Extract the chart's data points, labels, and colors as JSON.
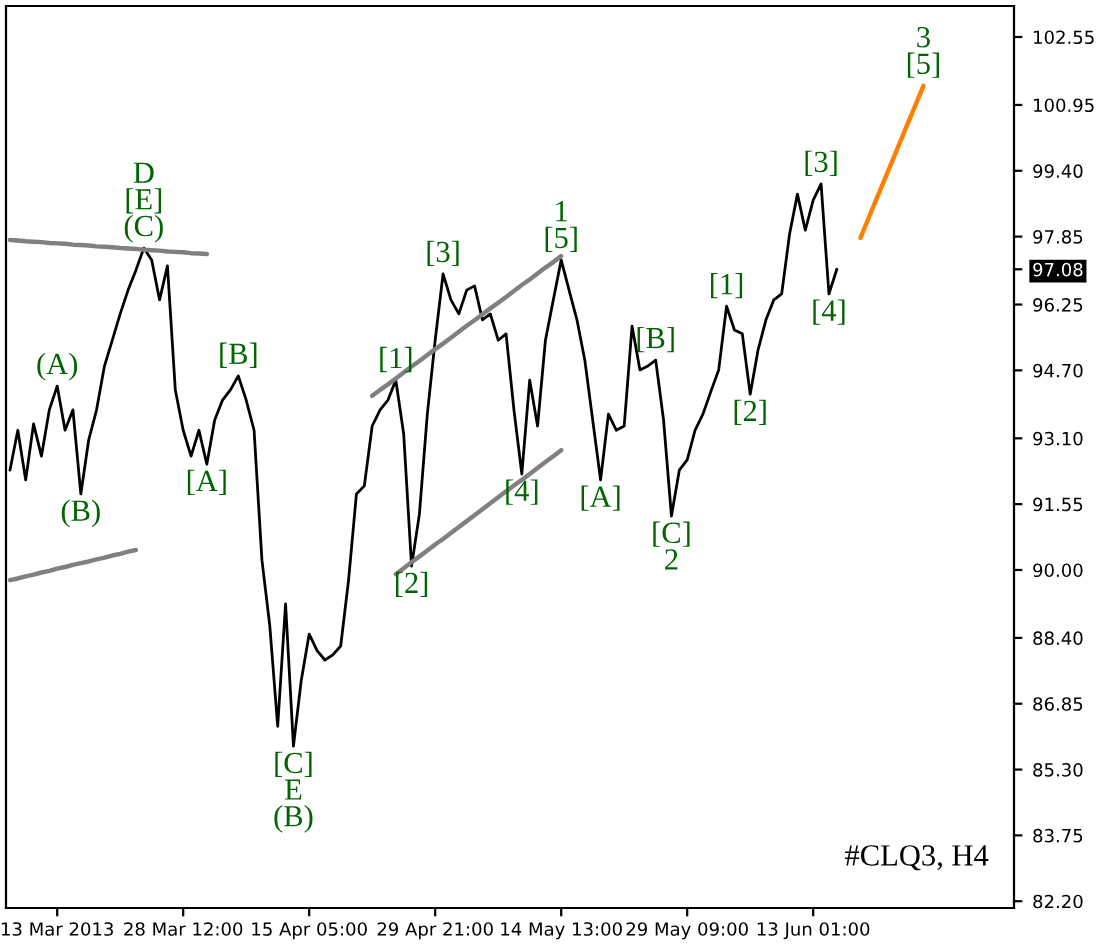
{
  "chart_data": {
    "type": "line",
    "categories": [
      null,
      null,
      null,
      null,
      null,
      null,
      "13 Mar 2013",
      null,
      null,
      null,
      null,
      null,
      null,
      null,
      null,
      null,
      null,
      null,
      null,
      null,
      null,
      null,
      "28 Mar 12:00",
      null,
      null,
      null,
      null,
      null,
      null,
      null,
      null,
      null,
      null,
      null,
      null,
      null,
      null,
      null,
      "15 Apr 05:00",
      null,
      null,
      null,
      null,
      null,
      null,
      null,
      null,
      null,
      null,
      null,
      null,
      null,
      null,
      null,
      "29 Apr 21:00",
      null,
      null,
      null,
      null,
      null,
      null,
      null,
      null,
      null,
      null,
      null,
      null,
      null,
      null,
      null,
      "14 May 13:00",
      null,
      null,
      null,
      null,
      null,
      null,
      null,
      null,
      null,
      null,
      null,
      null,
      null,
      null,
      null,
      "29 May 09:00",
      null,
      null,
      null,
      null,
      null,
      null,
      null,
      null,
      null,
      null,
      null,
      null,
      null,
      null,
      null,
      "13 Jun 01:00",
      null,
      null,
      null,
      null,
      null,
      null,
      null,
      null,
      null,
      null,
      null,
      null,
      null,
      null,
      null,
      null,
      null,
      null,
      null,
      null,
      null,
      null,
      null,
      null,
      null
    ],
    "ylim": [
      82.04,
      103.28
    ],
    "yticks": [
      {
        "value": 82.2,
        "label": "82.20"
      },
      {
        "value": 83.75,
        "label": "83.75"
      },
      {
        "value": 85.3,
        "label": "85.30"
      },
      {
        "value": 86.85,
        "label": "86.85"
      },
      {
        "value": 88.4,
        "label": "88.40"
      },
      {
        "value": 90,
        "label": "90.00"
      },
      {
        "value": 91.55,
        "label": "91.55"
      },
      {
        "value": 93.1,
        "label": "93.10"
      },
      {
        "value": 94.7,
        "label": "94.70"
      },
      {
        "value": 96.25,
        "label": "96.25"
      },
      97.08,
      {
        "value": 97.85,
        "label": "97.85"
      },
      {
        "value": 99.4,
        "label": "99.40"
      },
      {
        "value": 100.95,
        "label": "100.95"
      },
      {
        "value": 102.55,
        "label": "102.55"
      }
    ],
    "series": [
      {
        "color": "#000000",
        "values": [
          92.35,
          93.29,
          92.12,
          93.44,
          92.68,
          93.77,
          94.33,
          93.29,
          93.77,
          91.79,
          93.06,
          93.77,
          94.8,
          95.41,
          96.03,
          96.59,
          97.06,
          97.58,
          97.3,
          96.36,
          97.16,
          94.24,
          93.29,
          92.68,
          93.29,
          92.49,
          93.53,
          94.0,
          94.24,
          94.57,
          94.0,
          93.29,
          90.23,
          88.68,
          86.32,
          89.2,
          85.85,
          87.41,
          88.49,
          88.1,
          87.88,
          88.0,
          88.21,
          89.76,
          91.79,
          91.98,
          93.39,
          93.77,
          94.0,
          94.47,
          93.2,
          90.09,
          91.32,
          93.67,
          95.41,
          96.97,
          96.36,
          96.03,
          96.59,
          96.69,
          95.89,
          96.03,
          95.41,
          95.56,
          93.77,
          92.26,
          94.47,
          93.39,
          95.41,
          96.36,
          97.3,
          96.59,
          95.89,
          94.94,
          93.53,
          92.12,
          93.67,
          93.29,
          93.39,
          95.74,
          94.71,
          94.8,
          94.94,
          93.53,
          91.27,
          92.35,
          92.59,
          93.29,
          93.67,
          94.2,
          94.71,
          96.21,
          95.65,
          95.56,
          94.14,
          95.18,
          95.89,
          96.36,
          96.5,
          97.91,
          98.85,
          98.0,
          98.71,
          99.09,
          96.5,
          97.08,
          null,
          null,
          null,
          null,
          null,
          null,
          null,
          null,
          null,
          null,
          null,
          null,
          null,
          null,
          null,
          null,
          null,
          null,
          null,
          null,
          null,
          null
        ]
      },
      {
        "color": "#ff8000",
        "values": [
          null,
          null,
          null,
          null,
          null,
          null,
          null,
          null,
          null,
          null,
          null,
          null,
          null,
          null,
          null,
          null,
          null,
          null,
          null,
          null,
          null,
          null,
          null,
          null,
          null,
          null,
          null,
          null,
          null,
          null,
          null,
          null,
          null,
          null,
          null,
          null,
          null,
          null,
          null,
          null,
          null,
          null,
          null,
          null,
          null,
          null,
          null,
          null,
          null,
          null,
          null,
          null,
          null,
          null,
          null,
          null,
          null,
          null,
          null,
          null,
          null,
          null,
          null,
          null,
          null,
          null,
          null,
          null,
          null,
          null,
          null,
          null,
          null,
          null,
          null,
          null,
          null,
          null,
          null,
          null,
          null,
          null,
          null,
          null,
          null,
          null,
          null,
          null,
          null,
          null,
          null,
          null,
          null,
          null,
          null,
          null,
          null,
          null,
          null,
          null,
          null,
          null,
          null,
          null,
          null,
          null,
          null,
          null,
          97.82,
          98.27,
          98.72,
          99.16,
          99.61,
          100.06,
          100.51,
          100.95,
          101.4,
          null,
          null,
          null,
          null,
          null,
          null,
          null,
          null,
          null,
          null,
          null
        ]
      },
      {
        "color": "#808080",
        "values": [
          97.77,
          97.76,
          97.74,
          97.73,
          97.72,
          97.7,
          97.69,
          97.68,
          97.66,
          97.65,
          97.64,
          97.62,
          97.61,
          97.6,
          97.58,
          97.57,
          97.56,
          97.54,
          97.53,
          97.52,
          97.5,
          97.49,
          97.48,
          97.46,
          97.45,
          97.44,
          null,
          null,
          null,
          null,
          null,
          null,
          null,
          null,
          null,
          null,
          null,
          null,
          null,
          null,
          null,
          null,
          null,
          null,
          null,
          null,
          null,
          null,
          null,
          null,
          null,
          null,
          null,
          null,
          null,
          null,
          null,
          null,
          null,
          null,
          null,
          null,
          null,
          null,
          null,
          null,
          null,
          null,
          null,
          null,
          null,
          null,
          null,
          null,
          null,
          null,
          null,
          null,
          null,
          null,
          null,
          null,
          null,
          null,
          null,
          null,
          null,
          null,
          null,
          null,
          null,
          null,
          null,
          null,
          null,
          null,
          null,
          null,
          null,
          null,
          null,
          null,
          null,
          null,
          null,
          null,
          null,
          null,
          null,
          null,
          null,
          null,
          null,
          null,
          null,
          null,
          null,
          null,
          null,
          null,
          null,
          null,
          null,
          null,
          null,
          null,
          null,
          null
        ]
      },
      {
        "color": "#808080",
        "values": [
          89.76,
          89.8,
          89.85,
          89.89,
          89.94,
          89.98,
          90.03,
          90.07,
          90.12,
          90.16,
          90.2,
          90.25,
          90.29,
          90.34,
          90.38,
          90.43,
          90.47,
          null,
          null,
          null,
          null,
          null,
          null,
          null,
          null,
          null,
          null,
          null,
          null,
          null,
          null,
          null,
          null,
          null,
          null,
          null,
          null,
          null,
          null,
          null,
          null,
          null,
          null,
          null,
          null,
          null,
          null,
          null,
          null,
          null,
          null,
          null,
          null,
          null,
          null,
          null,
          null,
          null,
          null,
          null,
          null,
          null,
          null,
          null,
          null,
          null,
          null,
          null,
          null,
          null,
          null,
          null,
          null,
          null,
          null,
          null,
          null,
          null,
          null,
          null,
          null,
          null,
          null,
          null,
          null,
          null,
          null,
          null,
          null,
          null,
          null,
          null,
          null,
          null,
          null,
          null,
          null,
          null,
          null,
          null,
          null,
          null,
          null,
          null,
          null,
          null,
          null,
          null,
          null,
          null,
          null,
          null,
          null,
          null,
          null,
          null,
          null,
          null,
          null,
          null,
          null,
          null,
          null,
          null,
          null,
          null,
          null,
          null
        ]
      },
      {
        "color": "#808080",
        "values": [
          null,
          null,
          null,
          null,
          null,
          null,
          null,
          null,
          null,
          null,
          null,
          null,
          null,
          null,
          null,
          null,
          null,
          null,
          null,
          null,
          null,
          null,
          null,
          null,
          null,
          null,
          null,
          null,
          null,
          null,
          null,
          null,
          null,
          null,
          null,
          null,
          null,
          null,
          null,
          null,
          null,
          null,
          null,
          null,
          null,
          null,
          94.1,
          94.24,
          94.37,
          94.51,
          94.65,
          94.79,
          94.92,
          95.06,
          95.2,
          95.33,
          95.47,
          95.61,
          95.75,
          95.88,
          96.02,
          96.16,
          96.29,
          96.43,
          96.57,
          96.71,
          96.84,
          96.98,
          97.12,
          97.25,
          97.39,
          null,
          null,
          null,
          null,
          null,
          null,
          null,
          null,
          null,
          null,
          null,
          null,
          null,
          null,
          null,
          null,
          null,
          null,
          null,
          null,
          null,
          null,
          null,
          null,
          null,
          null,
          null,
          null,
          null,
          null,
          null,
          null,
          null,
          null,
          null,
          null,
          null,
          null,
          null,
          null,
          null,
          null,
          null,
          null,
          null,
          null,
          null,
          null,
          null,
          null,
          null,
          null,
          null,
          null,
          null,
          null,
          null
        ]
      },
      {
        "color": "#808080",
        "values": [
          null,
          null,
          null,
          null,
          null,
          null,
          null,
          null,
          null,
          null,
          null,
          null,
          null,
          null,
          null,
          null,
          null,
          null,
          null,
          null,
          null,
          null,
          null,
          null,
          null,
          null,
          null,
          null,
          null,
          null,
          null,
          null,
          null,
          null,
          null,
          null,
          null,
          null,
          null,
          null,
          null,
          null,
          null,
          null,
          null,
          null,
          null,
          null,
          null,
          89.9,
          90.04,
          90.18,
          90.32,
          90.46,
          90.6,
          90.73,
          90.87,
          91.01,
          91.15,
          91.29,
          91.43,
          91.57,
          91.71,
          91.85,
          91.99,
          92.12,
          92.26,
          92.4,
          92.54,
          92.68,
          92.82,
          null,
          null,
          null,
          null,
          null,
          null,
          null,
          null,
          null,
          null,
          null,
          null,
          null,
          null,
          null,
          null,
          null,
          null,
          null,
          null,
          null,
          null,
          null,
          null,
          null,
          null,
          null,
          null,
          null,
          null,
          null,
          null,
          null,
          null,
          null,
          null,
          null,
          null,
          null,
          null,
          null,
          null,
          null,
          null,
          null,
          null,
          null,
          null,
          null,
          null,
          null,
          null,
          null,
          null,
          null,
          null,
          null
        ]
      }
    ],
    "annotations": [
      {
        "text": "(A)",
        "y": 94.33
      },
      {
        "text": "(B)",
        "y": 91.79
      },
      {
        "text": "D\n[E]\n(C)",
        "y": 97.58
      },
      {
        "text": "[A]",
        "y": 92.49
      },
      {
        "text": "[B]",
        "y": 94.57
      },
      {
        "text": "[C]\nE\n(B)",
        "y": 85.85
      },
      {
        "text": "[1]",
        "y": 94.47
      },
      {
        "text": "[2]",
        "y": 90.09
      },
      {
        "text": "[3]",
        "y": 96.97
      },
      {
        "text": "[4]",
        "y": 92.26
      },
      {
        "text": "1\n[5]",
        "y": 97.3
      },
      {
        "text": "[A]",
        "y": 92.12
      },
      {
        "text": "[B]",
        "y": 94.94
      },
      {
        "text": "[C]\n2",
        "y": 91.27
      },
      {
        "text": "[1]",
        "y": 96.21
      },
      {
        "text": "[2]",
        "y": 94.14
      },
      {
        "text": "[3]",
        "y": 99.09
      },
      {
        "text": "[4]",
        "y": 96.5
      },
      {
        "text": "3\n[5]",
        "y": 101.4
      },
      "#CLQ3, H4"
    ]
  }
}
